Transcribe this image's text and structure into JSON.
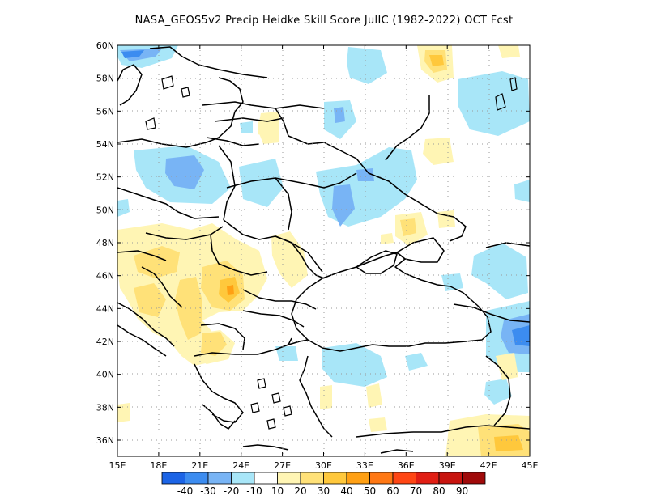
{
  "title": "NASA_GEOS5v2 Precip Heidke Skill Score JulIC (1982-2022) OCT Fcst",
  "map": {
    "lon_labels": [
      "15E",
      "18E",
      "21E",
      "24E",
      "27E",
      "30E",
      "33E",
      "36E",
      "39E",
      "42E",
      "45E"
    ],
    "lat_labels": [
      "60N",
      "58N",
      "56N",
      "54N",
      "52N",
      "50N",
      "48N",
      "46N",
      "44N",
      "42N",
      "40N",
      "38N",
      "36N"
    ]
  },
  "colorbar": {
    "colors": [
      "#1c64e6",
      "#3c8cf0",
      "#78b4f5",
      "#a8e6f8",
      "#ffffff",
      "#fff5b4",
      "#ffe178",
      "#ffc83c",
      "#ffa014",
      "#ff7814",
      "#ff4614",
      "#e11e14",
      "#c8140f",
      "#a00a0a"
    ],
    "labels": [
      "-40",
      "-30",
      "-20",
      "-10",
      "10",
      "20",
      "30",
      "40",
      "50",
      "60",
      "70",
      "80",
      "90"
    ]
  }
}
